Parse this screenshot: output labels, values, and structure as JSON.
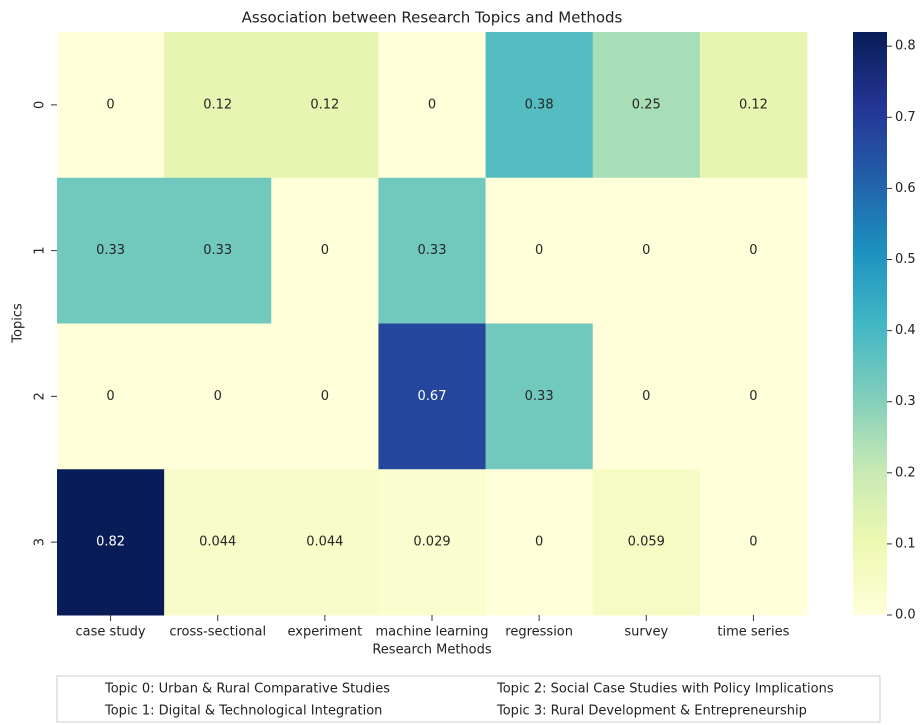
{
  "chart_data": {
    "type": "heatmap",
    "title": "Association between Research Topics and Methods",
    "x_label": "Research Methods",
    "y_label": "Topics",
    "categories": [
      "case study",
      "cross-sectional",
      "experiment",
      "machine learning",
      "regression",
      "survey",
      "time series"
    ],
    "rows": [
      "0",
      "1",
      "2",
      "3"
    ],
    "values": [
      [
        0,
        0.12,
        0.12,
        0,
        0.38,
        0.25,
        0.12
      ],
      [
        0.33,
        0.33,
        0,
        0.33,
        0,
        0,
        0
      ],
      [
        0,
        0,
        0,
        0.67,
        0.33,
        0,
        0
      ],
      [
        0.82,
        0.044,
        0.044,
        0.029,
        0,
        0.059,
        0
      ]
    ],
    "colorscale": [
      "#ffffd9",
      "#edf8b1",
      "#c7e9b4",
      "#7fcdbb",
      "#41b6c4",
      "#1d91c0",
      "#225ea8",
      "#253494",
      "#081d58"
    ],
    "zlim": [
      0,
      0.82
    ],
    "zticks": [
      {
        "value": 0,
        "label": "0.0"
      },
      0.1,
      0.2,
      0.3,
      0.4,
      0.5,
      0.6,
      0.7,
      0.8
    ],
    "annotations": [
      "Topic 0: Urban & Rural Comparative Studies",
      "Topic 1: Digital & Technological Integration",
      "Topic 2: Social Case Studies with Policy Implications",
      "Topic 3: Rural Development & Entrepreneurship"
    ]
  }
}
